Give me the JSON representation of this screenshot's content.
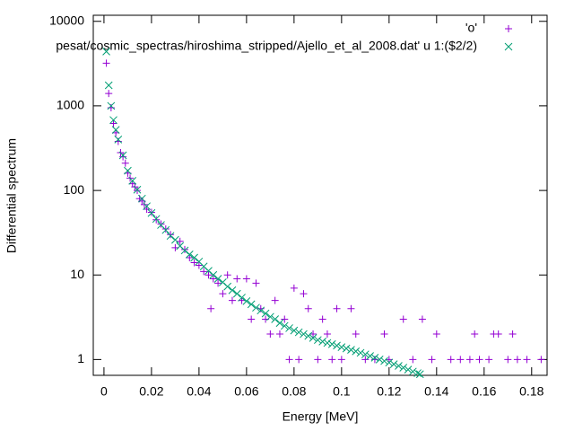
{
  "chart_data": {
    "type": "scatter",
    "xlabel": "Energy [MeV]",
    "ylabel": "Differential spectrum",
    "xlim": [
      -0.0045,
      0.1865
    ],
    "ylim": [
      0.65,
      11800
    ],
    "ylog": true,
    "xticks": [
      0,
      0.02,
      0.04,
      0.06,
      0.08,
      0.1,
      0.12,
      0.14,
      0.16,
      0.18
    ],
    "yticks": [
      1,
      10,
      100,
      1000,
      10000
    ],
    "legend": "top-right",
    "series": [
      {
        "name": "'o'",
        "color": "#9400d3",
        "marker": "+",
        "x": [
          0.001,
          0.002,
          0.003,
          0.004,
          0.005,
          0.006,
          0.007,
          0.008,
          0.009,
          0.01,
          0.011,
          0.012,
          0.013,
          0.014,
          0.015,
          0.016,
          0.017,
          0.018,
          0.02,
          0.022,
          0.024,
          0.026,
          0.028,
          0.03,
          0.032,
          0.034,
          0.036,
          0.038,
          0.04,
          0.042,
          0.044,
          0.045,
          0.046,
          0.048,
          0.05,
          0.052,
          0.054,
          0.056,
          0.058,
          0.06,
          0.062,
          0.064,
          0.066,
          0.068,
          0.07,
          0.072,
          0.074,
          0.076,
          0.078,
          0.08,
          0.082,
          0.084,
          0.086,
          0.088,
          0.09,
          0.092,
          0.094,
          0.096,
          0.098,
          0.1,
          0.104,
          0.106,
          0.11,
          0.114,
          0.118,
          0.12,
          0.126,
          0.13,
          0.134,
          0.138,
          0.14,
          0.146,
          0.15,
          0.154,
          0.156,
          0.158,
          0.162,
          0.164,
          0.166,
          0.17,
          0.172,
          0.174,
          0.178,
          0.184
        ],
        "values": [
          3200,
          1400,
          950,
          620,
          480,
          380,
          280,
          250,
          210,
          160,
          140,
          120,
          110,
          100,
          80,
          75,
          68,
          60,
          55,
          45,
          40,
          35,
          30,
          21,
          25,
          20,
          16,
          14,
          13,
          11,
          10,
          4,
          9,
          8,
          6,
          10,
          5,
          9,
          5,
          9,
          3,
          8,
          4,
          3,
          2,
          5,
          2,
          3,
          1,
          7,
          1,
          6,
          4,
          2,
          1,
          3,
          2,
          1,
          4,
          1,
          4,
          2,
          1,
          1,
          2,
          1,
          3,
          1,
          3,
          1,
          2,
          1,
          1,
          1,
          2,
          1,
          1,
          2,
          2,
          1,
          2,
          1,
          1,
          1
        ]
      },
      {
        "name": "pesat/cosmic_spectras/hiroshima_stripped/Ajello_et_al_2008.dat' u 1:($2/2)",
        "color": "#009e73",
        "marker": "x",
        "x": [
          0.001,
          0.002,
          0.003,
          0.004,
          0.005,
          0.006,
          0.008,
          0.01,
          0.012,
          0.014,
          0.016,
          0.018,
          0.02,
          0.022,
          0.024,
          0.026,
          0.028,
          0.03,
          0.032,
          0.034,
          0.036,
          0.038,
          0.04,
          0.042,
          0.044,
          0.046,
          0.048,
          0.05,
          0.052,
          0.054,
          0.056,
          0.058,
          0.06,
          0.062,
          0.064,
          0.066,
          0.068,
          0.07,
          0.072,
          0.074,
          0.076,
          0.078,
          0.08,
          0.082,
          0.084,
          0.086,
          0.088,
          0.09,
          0.092,
          0.094,
          0.096,
          0.098,
          0.1,
          0.102,
          0.104,
          0.106,
          0.108,
          0.11,
          0.112,
          0.114,
          0.116,
          0.118,
          0.12,
          0.122,
          0.124,
          0.126,
          0.128,
          0.13,
          0.132,
          0.133
        ],
        "values": [
          4400,
          1750,
          1000,
          680,
          520,
          400,
          260,
          171,
          130,
          102,
          80,
          65,
          54,
          46,
          39,
          34,
          29,
          26,
          22,
          19.5,
          17.5,
          16,
          14.4,
          12.6,
          11.2,
          10,
          9,
          8.2,
          7.3,
          6.6,
          6,
          5.4,
          4.9,
          4.5,
          4.1,
          3.8,
          3.5,
          3.2,
          3,
          2.7,
          2.5,
          2.35,
          2.2,
          2.1,
          2,
          1.9,
          1.8,
          1.7,
          1.63,
          1.57,
          1.52,
          1.46,
          1.4,
          1.35,
          1.3,
          1.25,
          1.2,
          1.15,
          1.1,
          1.05,
          1.0,
          0.96,
          0.92,
          0.88,
          0.84,
          0.8,
          0.76,
          0.72,
          0.69,
          0.67
        ]
      }
    ]
  }
}
